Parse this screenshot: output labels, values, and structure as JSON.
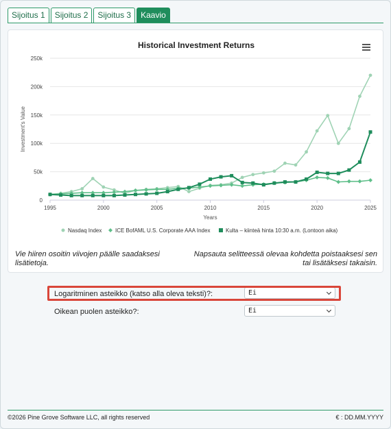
{
  "tabs": [
    {
      "label": "Sijoitus 1",
      "active": false
    },
    {
      "label": "Sijoitus 2",
      "active": false
    },
    {
      "label": "Sijoitus 3",
      "active": false
    },
    {
      "label": "Kaavio",
      "active": true
    }
  ],
  "chart_menu_icon": "hamburger-menu-icon",
  "chart_data": {
    "type": "line",
    "title": "Historical Investment Returns",
    "xlabel": "Years",
    "ylabel": "Investment's Value",
    "xlim": [
      1995,
      2025
    ],
    "ylim": [
      0,
      250000
    ],
    "x_ticks": [
      "1995",
      "2000",
      "2005",
      "2010",
      "2015",
      "2020",
      "2025"
    ],
    "x_tick_values": [
      1995,
      2000,
      2005,
      2010,
      2015,
      2020,
      2025
    ],
    "y_ticks": [
      "0",
      "50k",
      "100k",
      "150k",
      "200k",
      "250k"
    ],
    "y_tick_values": [
      0,
      50000,
      100000,
      150000,
      200000,
      250000
    ],
    "grid": true,
    "legend_position": "bottom",
    "x": [
      1995,
      1996,
      1997,
      1998,
      1999,
      2000,
      2001,
      2002,
      2003,
      2004,
      2005,
      2006,
      2007,
      2008,
      2009,
      2010,
      2011,
      2012,
      2013,
      2014,
      2015,
      2016,
      2017,
      2018,
      2019,
      2020,
      2021,
      2022,
      2023,
      2024,
      2025
    ],
    "series": [
      {
        "name": "Nasdaq Index",
        "color": "#9fd3b4",
        "marker": "circle",
        "values": [
          10000,
          12000,
          15000,
          20000,
          38000,
          23000,
          18000,
          12000,
          17000,
          19000,
          20000,
          22000,
          24000,
          15000,
          21000,
          26000,
          27000,
          30000,
          40000,
          45000,
          48000,
          51000,
          65000,
          62000,
          85000,
          122000,
          149000,
          100000,
          126000,
          183000,
          220000
        ]
      },
      {
        "name": "ICE BofAML U.S. Corporate AAA Index",
        "color": "#5fbf8a",
        "marker": "diamond",
        "values": [
          10000,
          11000,
          12000,
          13000,
          13000,
          13000,
          14000,
          15000,
          17000,
          18000,
          19000,
          19000,
          21000,
          21000,
          23000,
          25000,
          26000,
          27000,
          25000,
          27000,
          28000,
          30000,
          31000,
          32000,
          35000,
          40000,
          39000,
          32000,
          33000,
          33000,
          35000
        ]
      },
      {
        "name": "Kulta – kiinteä hinta 10:30 a.m. (Lontoon aika)",
        "color": "#1f8d5c",
        "marker": "square",
        "values": [
          10000,
          9000,
          8000,
          8000,
          8000,
          8000,
          8000,
          9000,
          10000,
          11000,
          12000,
          15000,
          19000,
          22000,
          28000,
          37000,
          41000,
          43000,
          31000,
          30000,
          27000,
          30000,
          32000,
          32000,
          37000,
          49000,
          47000,
          47000,
          53000,
          67000,
          120000
        ]
      }
    ]
  },
  "hints": {
    "left": "Vie hiiren osoitin viivojen päälle saadaksesi lisätietoja.",
    "right": "Napsauta selitteessä olevaa kohdetta poistaaksesi sen tai lisätäksesi takaisin."
  },
  "options": {
    "log_scale_label": "Logaritminen asteikko (katso alla oleva teksti)?:",
    "log_scale_value": "Ei",
    "right_axis_label": "Oikean puolen asteikko?:",
    "right_axis_value": "Ei"
  },
  "footer": {
    "copyright": "©2026 Pine Grove Software LLC, all rights reserved",
    "format": "€ : DD.MM.YYYY"
  }
}
